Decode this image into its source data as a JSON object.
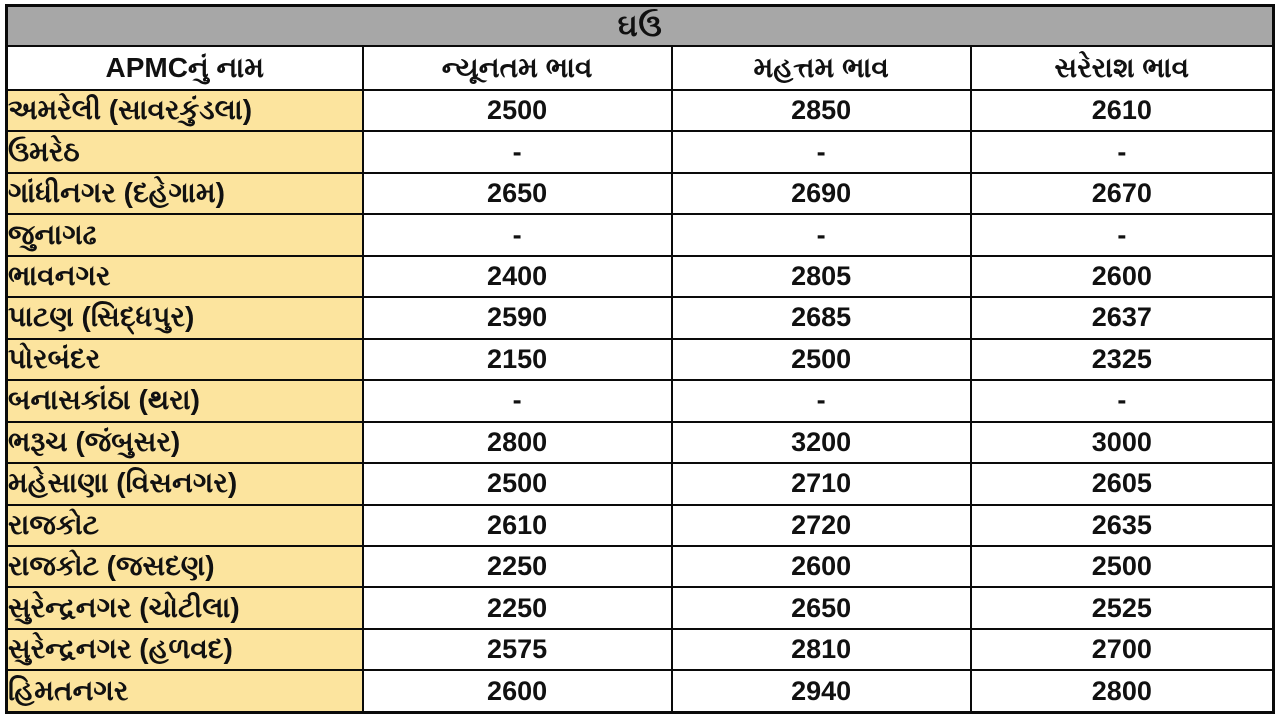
{
  "chart_data": {
    "type": "table",
    "title": "ઘઉં",
    "columns": [
      "APMCનું નામ",
      "ન્યૂનતમ ભાવ",
      "મહત્તમ ભાવ",
      "સરેરાશ ભાવ"
    ],
    "rows": [
      [
        "અમરેલી (સાવરકુંડલા)",
        "2500",
        "2850",
        "2610"
      ],
      [
        "ઉમરેઠ",
        "-",
        "-",
        "-"
      ],
      [
        "ગાંધીનગર (દહેગામ)",
        "2650",
        "2690",
        "2670"
      ],
      [
        "જુનાગઢ",
        "-",
        "-",
        "-"
      ],
      [
        "ભાવનગર",
        "2400",
        "2805",
        "2600"
      ],
      [
        "પાટણ (સિદ્ધપુર)",
        "2590",
        "2685",
        "2637"
      ],
      [
        "પોરબંદર",
        "2150",
        "2500",
        "2325"
      ],
      [
        "બનાસકાંઠા (થરા)",
        "-",
        "-",
        "-"
      ],
      [
        "ભરૂચ (જંબુસર)",
        "2800",
        "3200",
        "3000"
      ],
      [
        "મહેસાણા (વિસનગર)",
        "2500",
        "2710",
        "2605"
      ],
      [
        "રાજકોટ",
        "2610",
        "2720",
        "2635"
      ],
      [
        "રાજકોટ (જસદણ)",
        "2250",
        "2600",
        "2500"
      ],
      [
        "સુરેન્દ્રનગર (ચોટીલા)",
        "2250",
        "2650",
        "2525"
      ],
      [
        "સુરેન્દ્રનગર (હળવદ)",
        "2575",
        "2810",
        "2700"
      ],
      [
        "હિમતનગર",
        "2600",
        "2940",
        "2800"
      ]
    ],
    "layout": {
      "grid": true,
      "title_position": "top-merged-row",
      "name_column_align": "left",
      "value_columns_align": "center"
    }
  },
  "colors": {
    "title_bar_bg": "#a7a7a7",
    "header_bg": "#ffffff",
    "name_column_bg": "#fce49e",
    "value_cell_bg": "#ffffff",
    "border": "#0a0a0a",
    "text": "#111111"
  }
}
